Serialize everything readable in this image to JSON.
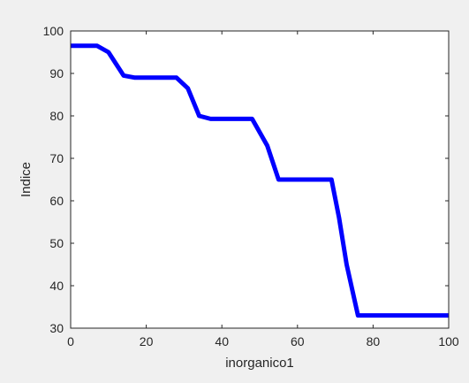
{
  "chart_data": {
    "type": "line",
    "title": "",
    "xlabel": "inorganico1",
    "ylabel": "Indice",
    "xlim": [
      0,
      100
    ],
    "ylim": [
      30,
      100
    ],
    "grid": false,
    "line_color": "#0000ff",
    "background_color": "#f0f0f0",
    "axes_color": "#ffffff",
    "xticks": [
      0,
      20,
      40,
      60,
      80,
      100
    ],
    "yticks": [
      30,
      40,
      50,
      60,
      70,
      80,
      90,
      100
    ],
    "xtick_labels": [
      "0",
      "20",
      "40",
      "60",
      "80",
      "100"
    ],
    "ytick_labels": [
      "30",
      "40",
      "50",
      "60",
      "70",
      "80",
      "90",
      "100"
    ],
    "series": [
      {
        "x": [
          0,
          7,
          10,
          14,
          17,
          20,
          24,
          28,
          31,
          34,
          37,
          40,
          44,
          48,
          52,
          55,
          59,
          63,
          66,
          69,
          71,
          73,
          76,
          80,
          85,
          90,
          95,
          100
        ],
        "y": [
          96.5,
          96.5,
          95,
          89.5,
          89,
          89,
          89,
          89,
          86.5,
          80,
          79.3,
          79.3,
          79.3,
          79.3,
          73,
          65,
          65,
          65,
          65,
          65,
          56,
          45,
          33,
          33,
          33,
          33,
          33,
          33
        ]
      }
    ]
  }
}
